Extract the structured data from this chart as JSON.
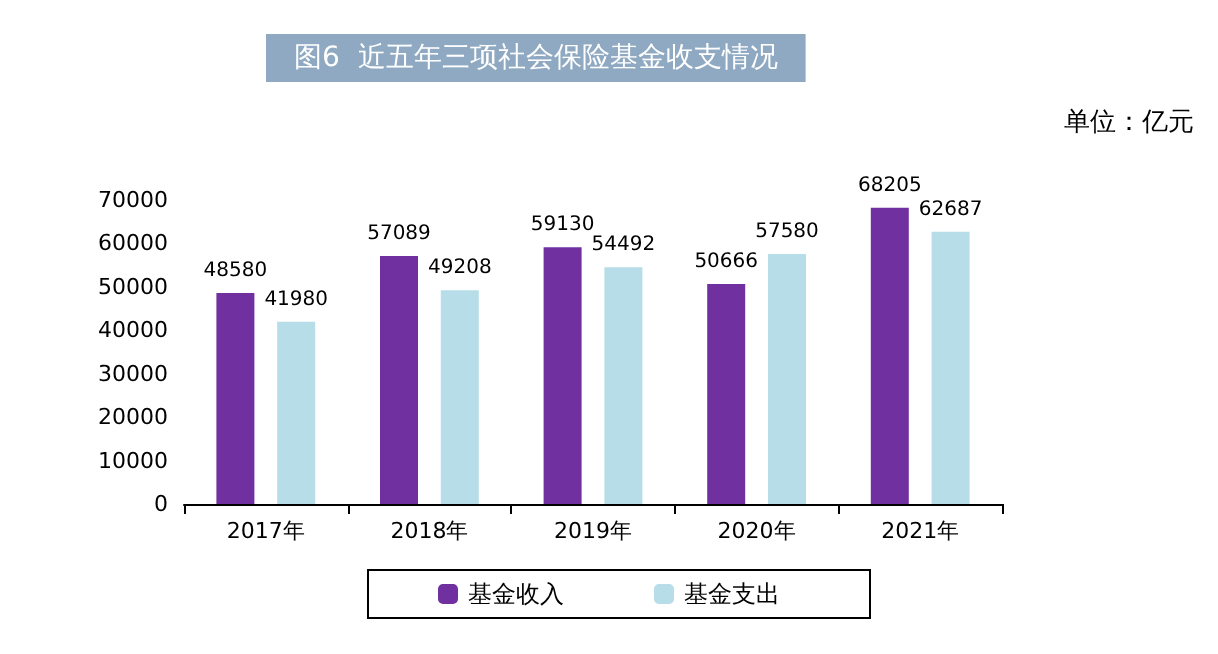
{
  "chart_data": {
    "type": "bar",
    "title": "图6  近五年三项社会保险基金收支情况",
    "annotations": [
      "单位：亿元"
    ],
    "categories": [
      "2017年",
      "2018年",
      "2019年",
      "2020年",
      "2021年"
    ],
    "series": [
      {
        "name": "基金收入",
        "color": "#7030a0",
        "values": [
          48580,
          57089,
          59130,
          50666,
          68205
        ]
      },
      {
        "name": "基金支出",
        "color": "#b7dde8",
        "values": [
          41980,
          49208,
          54492,
          57580,
          62687
        ]
      }
    ],
    "ylim": [
      0,
      70000
    ],
    "yticks": [
      0,
      10000,
      20000,
      30000,
      40000,
      50000,
      60000,
      70000
    ],
    "grid": false,
    "legend": "bottom",
    "data_labels": true
  }
}
